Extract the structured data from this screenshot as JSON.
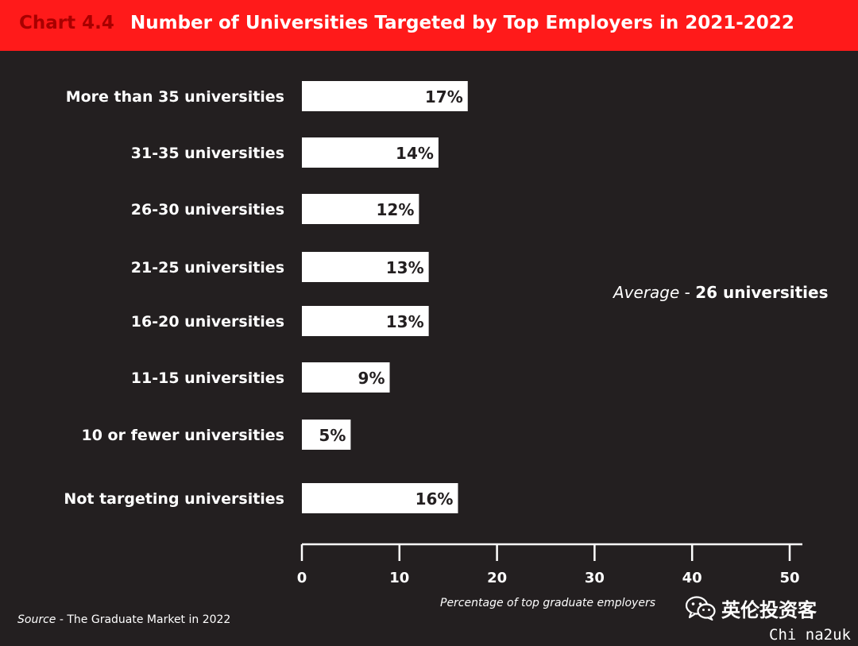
{
  "header": {
    "chart_number": "Chart 4.4",
    "title": "Number of Universities Targeted by Top Employers in 2021-2022"
  },
  "colors": {
    "background": "#231f20",
    "header_bar": "#ff1a1a",
    "chart_number": "#a80000",
    "bar_fill": "#ffffff",
    "text": "#ffffff"
  },
  "chart_data": {
    "type": "bar",
    "orientation": "horizontal",
    "title": "Number of Universities Targeted by Top Employers in 2021-2022",
    "categories": [
      "More than 35 universities",
      "31-35 universities",
      "26-30 universities",
      "21-25 universities",
      "16-20 universities",
      "11-15 universities",
      "10 or fewer universities",
      "Not targeting universities"
    ],
    "values": [
      17,
      14,
      12,
      13,
      13,
      9,
      5,
      16
    ],
    "value_labels": [
      "17%",
      "14%",
      "12%",
      "13%",
      "13%",
      "9%",
      "5%",
      "16%"
    ],
    "xlabel": "Percentage of top graduate employers",
    "ylabel": "",
    "xlim": [
      0,
      50
    ],
    "xticks": [
      0,
      10,
      20,
      30,
      40,
      50
    ],
    "grid": false,
    "legend": "none"
  },
  "annotation": {
    "label": "Average",
    "separator": " - ",
    "value": "26 universities"
  },
  "source": {
    "label": "Source",
    "separator": " - ",
    "text": "The Graduate Market in 2022"
  },
  "watermark": {
    "icon": "wechat-icon",
    "text": "英伦投资客",
    "corner_text": "Chi na2uk"
  }
}
